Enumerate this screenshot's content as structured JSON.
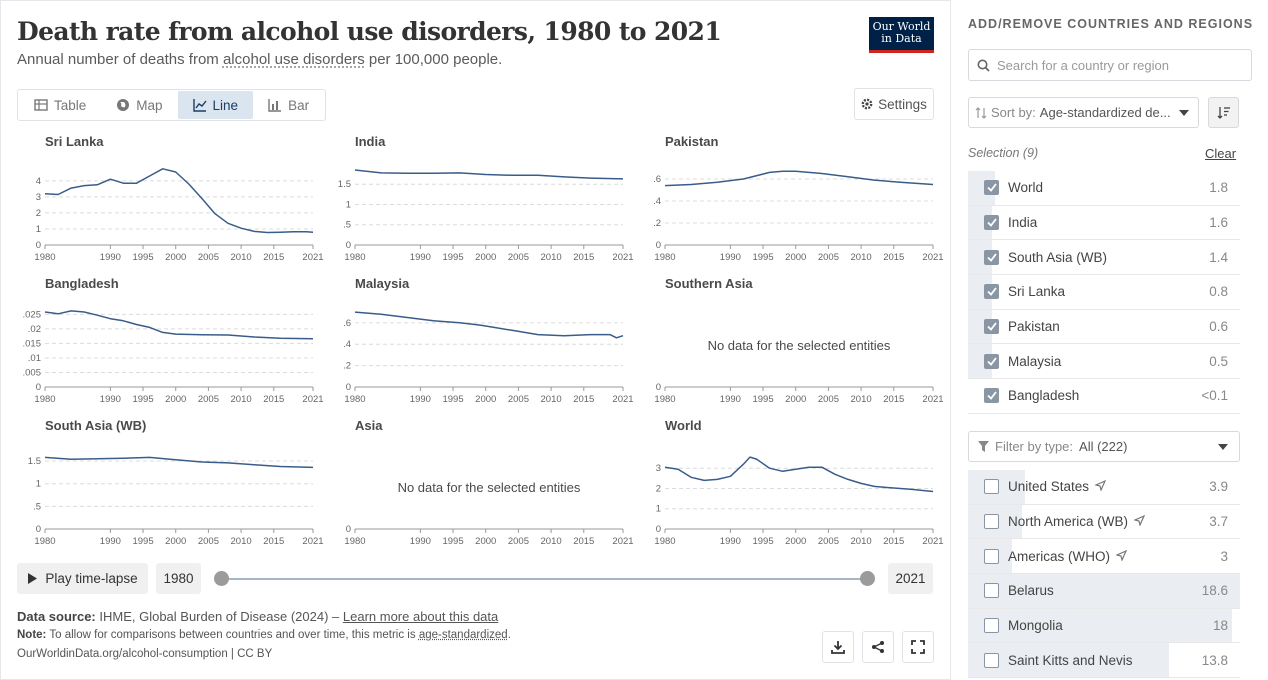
{
  "header": {
    "title": "Death rate from alcohol use disorders, 1980 to 2021",
    "subtitle_pre": "Annual number of deaths from ",
    "subtitle_link": "alcohol use disorders",
    "subtitle_post": " per 100,000 people.",
    "logo_line1": "Our World",
    "logo_line2": "in Data"
  },
  "tabs": [
    {
      "label": "Table",
      "icon": "table-icon",
      "active": false
    },
    {
      "label": "Map",
      "icon": "globe-icon",
      "active": false
    },
    {
      "label": "Line",
      "icon": "line-chart-icon",
      "active": true
    },
    {
      "label": "Bar",
      "icon": "bar-chart-icon",
      "active": false
    }
  ],
  "settings_label": "Settings",
  "chart_data": {
    "type": "line",
    "x_tick_labels": [
      "1980",
      "1990",
      "1995",
      "2000",
      "2005",
      "2010",
      "2015",
      "2021"
    ],
    "xlim": [
      1980,
      2021
    ],
    "no_data_text": "No data for the selected entities",
    "panels": [
      {
        "name": "Sri Lanka",
        "ylim": [
          0,
          4.8
        ],
        "yticks": [
          0,
          1,
          2,
          3,
          4
        ],
        "grid": true,
        "x": [
          1980,
          1982,
          1984,
          1986,
          1988,
          1990,
          1992,
          1994,
          1996,
          1998,
          2000,
          2002,
          2004,
          2006,
          2008,
          2010,
          2012,
          2014,
          2016,
          2018,
          2020,
          2021
        ],
        "y": [
          3.2,
          3.15,
          3.55,
          3.7,
          3.75,
          4.1,
          3.85,
          3.85,
          4.3,
          4.75,
          4.55,
          3.8,
          2.9,
          1.95,
          1.35,
          1.05,
          0.85,
          0.78,
          0.8,
          0.83,
          0.82,
          0.8
        ]
      },
      {
        "name": "India",
        "ylim": [
          0,
          1.9
        ],
        "yticks": [
          0,
          0.5,
          1,
          1.5
        ],
        "grid": true,
        "x": [
          1980,
          1984,
          1988,
          1992,
          1996,
          2000,
          2004,
          2008,
          2012,
          2016,
          2021
        ],
        "y": [
          1.85,
          1.78,
          1.77,
          1.77,
          1.78,
          1.74,
          1.72,
          1.72,
          1.68,
          1.65,
          1.63
        ]
      },
      {
        "name": "Pakistan",
        "ylim": [
          0,
          0.7
        ],
        "yticks": [
          0,
          0.2,
          0.4,
          0.6
        ],
        "grid": true,
        "x": [
          1980,
          1984,
          1988,
          1992,
          1996,
          1998,
          2000,
          2004,
          2008,
          2012,
          2016,
          2021
        ],
        "y": [
          0.54,
          0.55,
          0.57,
          0.6,
          0.66,
          0.67,
          0.67,
          0.65,
          0.62,
          0.59,
          0.57,
          0.55
        ]
      },
      {
        "name": "Bangladesh",
        "ylim": [
          0,
          0.0265
        ],
        "yticks": [
          0,
          0.005,
          0.01,
          0.015,
          0.02,
          0.025
        ],
        "grid": true,
        "x": [
          1980,
          1982,
          1984,
          1986,
          1988,
          1990,
          1992,
          1994,
          1996,
          1998,
          2000,
          2004,
          2008,
          2012,
          2016,
          2021
        ],
        "y": [
          0.0258,
          0.0252,
          0.0262,
          0.0258,
          0.0247,
          0.0235,
          0.0228,
          0.0215,
          0.0205,
          0.0188,
          0.0182,
          0.018,
          0.0179,
          0.0172,
          0.0168,
          0.0166
        ]
      },
      {
        "name": "Malaysia",
        "ylim": [
          0,
          0.72
        ],
        "yticks": [
          0,
          0.2,
          0.4,
          0.6
        ],
        "grid": true,
        "x": [
          1980,
          1984,
          1988,
          1992,
          1996,
          1999,
          2000,
          2004,
          2008,
          2012,
          2016,
          2019,
          2020,
          2021
        ],
        "y": [
          0.7,
          0.68,
          0.65,
          0.62,
          0.6,
          0.58,
          0.57,
          0.53,
          0.49,
          0.48,
          0.49,
          0.49,
          0.46,
          0.48
        ]
      },
      {
        "name": "Southern Asia",
        "no_data": true,
        "yticks": [
          0
        ]
      },
      {
        "name": "South Asia (WB)",
        "ylim": [
          0,
          1.7
        ],
        "yticks": [
          0,
          0.5,
          1,
          1.5
        ],
        "grid": true,
        "x": [
          1980,
          1984,
          1988,
          1992,
          1996,
          2000,
          2004,
          2008,
          2012,
          2016,
          2021
        ],
        "y": [
          1.58,
          1.54,
          1.55,
          1.56,
          1.58,
          1.53,
          1.48,
          1.46,
          1.42,
          1.38,
          1.36
        ]
      },
      {
        "name": "Asia",
        "no_data": true,
        "yticks": [
          0
        ]
      },
      {
        "name": "World",
        "ylim": [
          0,
          3.8
        ],
        "yticks": [
          0,
          1,
          2,
          3
        ],
        "grid": true,
        "x": [
          1980,
          1982,
          1984,
          1986,
          1988,
          1990,
          1992,
          1993,
          1994,
          1996,
          1998,
          2000,
          2002,
          2004,
          2006,
          2008,
          2010,
          2012,
          2014,
          2016,
          2018,
          2020,
          2021
        ],
        "y": [
          3.05,
          2.95,
          2.55,
          2.4,
          2.45,
          2.6,
          3.2,
          3.55,
          3.45,
          3.0,
          2.85,
          2.95,
          3.05,
          3.05,
          2.7,
          2.45,
          2.25,
          2.1,
          2.05,
          2.0,
          1.95,
          1.88,
          1.85
        ]
      }
    ]
  },
  "timeline": {
    "play_label": "Play time-lapse",
    "start_year": "1980",
    "end_year": "2021"
  },
  "footer": {
    "source_label": "Data source:",
    "source_text": " IHME, Global Burden of Disease (2024) – ",
    "source_link": "Learn more about this data",
    "note_label": "Note:",
    "note_text": " To allow for comparisons between countries and over time, this metric is ",
    "note_link": "age-standardized",
    "note_end": ".",
    "license": "OurWorldinData.org/alcohol-consumption | CC BY"
  },
  "sidebar": {
    "title": "ADD/REMOVE COUNTRIES AND REGIONS",
    "search_placeholder": "Search for a country or region",
    "sort_prefix": "Sort by:",
    "sort_value": "Age-standardized de...",
    "selection_label": "Selection (9)",
    "clear_label": "Clear",
    "selected": [
      {
        "name": "World",
        "value": "1.8",
        "bar": 0.1
      },
      {
        "name": "India",
        "value": "1.6",
        "bar": 0.09
      },
      {
        "name": "South Asia (WB)",
        "value": "1.4",
        "bar": 0.08
      },
      {
        "name": "Sri Lanka",
        "value": "0.8",
        "bar": 0.05
      },
      {
        "name": "Pakistan",
        "value": "0.6",
        "bar": 0.035
      },
      {
        "name": "Malaysia",
        "value": "0.5",
        "bar": 0.03
      },
      {
        "name": "Bangladesh",
        "value": "<0.1",
        "bar": 0.0
      }
    ],
    "filter_prefix": "Filter by type:",
    "filter_value": "All (222)",
    "available": [
      {
        "name": "United States",
        "value": "3.9",
        "bar": 0.21,
        "arrow": true
      },
      {
        "name": "North America (WB)",
        "value": "3.7",
        "bar": 0.2,
        "arrow": true
      },
      {
        "name": "Americas (WHO)",
        "value": "3",
        "bar": 0.16,
        "arrow": true
      },
      {
        "name": "Belarus",
        "value": "18.6",
        "bar": 1.0,
        "arrow": false
      },
      {
        "name": "Mongolia",
        "value": "18",
        "bar": 0.97,
        "arrow": false
      },
      {
        "name": "Saint Kitts and Nevis",
        "value": "13.8",
        "bar": 0.74,
        "arrow": false
      }
    ]
  }
}
